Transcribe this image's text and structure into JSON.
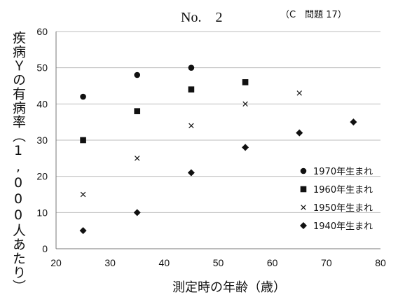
{
  "header": {
    "number": "No.　2",
    "question": "（C　問題 17）"
  },
  "chart_data": {
    "type": "scatter",
    "title": "",
    "xlabel": "測定時の年齢（歳）",
    "ylabel": "疾病Ｙの有病率（1,000人あたり）",
    "xlim": [
      20,
      80
    ],
    "ylim": [
      0,
      60
    ],
    "xticks": [
      20,
      30,
      40,
      50,
      60,
      70,
      80
    ],
    "yticks": [
      0,
      10,
      20,
      30,
      40,
      50,
      60
    ],
    "grid": "horizontal",
    "legend_position": "right",
    "series": [
      {
        "name": "1970年生まれ",
        "marker": "circle",
        "x": [
          25,
          35,
          45
        ],
        "y": [
          42,
          48,
          50
        ]
      },
      {
        "name": "1960年生まれ",
        "marker": "square",
        "x": [
          25,
          35,
          45,
          55
        ],
        "y": [
          30,
          38,
          44,
          46
        ]
      },
      {
        "name": "1950年生まれ",
        "marker": "cross",
        "x": [
          25,
          35,
          45,
          55,
          65
        ],
        "y": [
          15,
          25,
          34,
          40,
          43
        ]
      },
      {
        "name": "1940年生まれ",
        "marker": "diamond",
        "x": [
          25,
          35,
          45,
          55,
          65,
          75
        ],
        "y": [
          5,
          10,
          21,
          28,
          32,
          35
        ]
      }
    ]
  }
}
